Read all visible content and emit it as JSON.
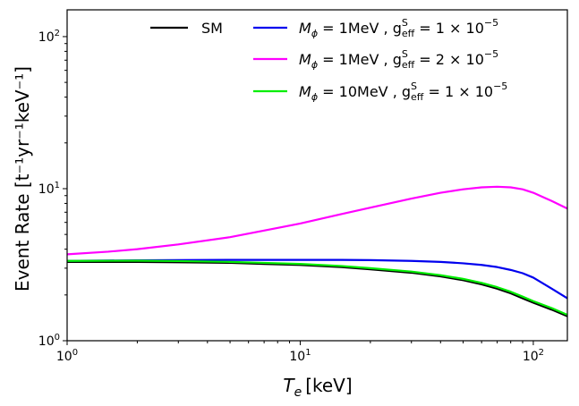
{
  "chart_data": {
    "type": "line",
    "xscale": "log",
    "yscale": "log",
    "xlim": [
      1,
      140
    ],
    "ylim": [
      1,
      150
    ],
    "xlabel": {
      "main": "T",
      "sub": "e",
      "unit": "[keV]"
    },
    "ylabel": "Event Rate [t⁻¹yr⁻¹keV⁻¹]",
    "x_ticks": [
      {
        "value": 1,
        "base": "10",
        "exp": "0"
      },
      {
        "value": 10,
        "base": "10",
        "exp": "1"
      },
      {
        "value": 100,
        "base": "10",
        "exp": "2"
      }
    ],
    "y_ticks": [
      {
        "value": 1,
        "base": "10",
        "exp": "0"
      },
      {
        "value": 10,
        "base": "10",
        "exp": "1"
      },
      {
        "value": 100,
        "base": "10",
        "exp": "2"
      }
    ],
    "legend_position": "top-right",
    "series": [
      {
        "id": "sm",
        "label": "SM",
        "color": "#000000",
        "x": [
          1,
          2,
          3,
          5,
          7,
          10,
          15,
          20,
          30,
          40,
          50,
          60,
          70,
          80,
          90,
          100,
          120,
          140
        ],
        "y": [
          3.3,
          3.3,
          3.28,
          3.25,
          3.2,
          3.15,
          3.05,
          2.95,
          2.8,
          2.65,
          2.5,
          2.35,
          2.2,
          2.05,
          1.9,
          1.78,
          1.6,
          1.45
        ]
      },
      {
        "id": "m1_g1",
        "label": {
          "mass_sym": "M",
          "mass_sub": "ϕ",
          "mass_val": " = 1MeV , ",
          "g_main": "g",
          "g_sup": "S",
          "g_sub": "eff",
          "g_val": " = 1 × 10",
          "g_exp": "−5"
        },
        "color": "#0000ee",
        "x": [
          1,
          2,
          3,
          5,
          7,
          10,
          15,
          20,
          30,
          40,
          50,
          60,
          70,
          80,
          90,
          100,
          120,
          140
        ],
        "y": [
          3.35,
          3.38,
          3.39,
          3.4,
          3.4,
          3.4,
          3.4,
          3.39,
          3.35,
          3.3,
          3.23,
          3.15,
          3.05,
          2.92,
          2.78,
          2.6,
          2.2,
          1.9
        ]
      },
      {
        "id": "m1_g2",
        "label": {
          "mass_sym": "M",
          "mass_sub": "ϕ",
          "mass_val": " = 1MeV , ",
          "g_main": "g",
          "g_sup": "S",
          "g_sub": "eff",
          "g_val": " = 2 × 10",
          "g_exp": "−5"
        },
        "color": "#ff00ff",
        "x": [
          1,
          1.5,
          2,
          3,
          5,
          7,
          10,
          15,
          20,
          30,
          40,
          50,
          60,
          70,
          80,
          90,
          100,
          110,
          120,
          140
        ],
        "y": [
          3.7,
          3.85,
          4.0,
          4.3,
          4.8,
          5.3,
          5.9,
          6.8,
          7.5,
          8.6,
          9.4,
          9.9,
          10.2,
          10.3,
          10.2,
          9.9,
          9.4,
          8.8,
          8.3,
          7.4
        ]
      },
      {
        "id": "m10_g1",
        "label": {
          "mass_sym": "M",
          "mass_sub": "ϕ",
          "mass_val": " = 10MeV , ",
          "g_main": "g",
          "g_sup": "S",
          "g_sub": "eff",
          "g_val": " = 1 × 10",
          "g_exp": "−5"
        },
        "color": "#00ee00",
        "x": [
          1,
          2,
          3,
          5,
          7,
          10,
          15,
          20,
          30,
          40,
          50,
          60,
          70,
          80,
          90,
          100,
          120,
          140
        ],
        "y": [
          3.35,
          3.36,
          3.34,
          3.3,
          3.25,
          3.2,
          3.1,
          3.0,
          2.85,
          2.7,
          2.55,
          2.4,
          2.25,
          2.1,
          1.95,
          1.82,
          1.64,
          1.48
        ]
      }
    ]
  }
}
